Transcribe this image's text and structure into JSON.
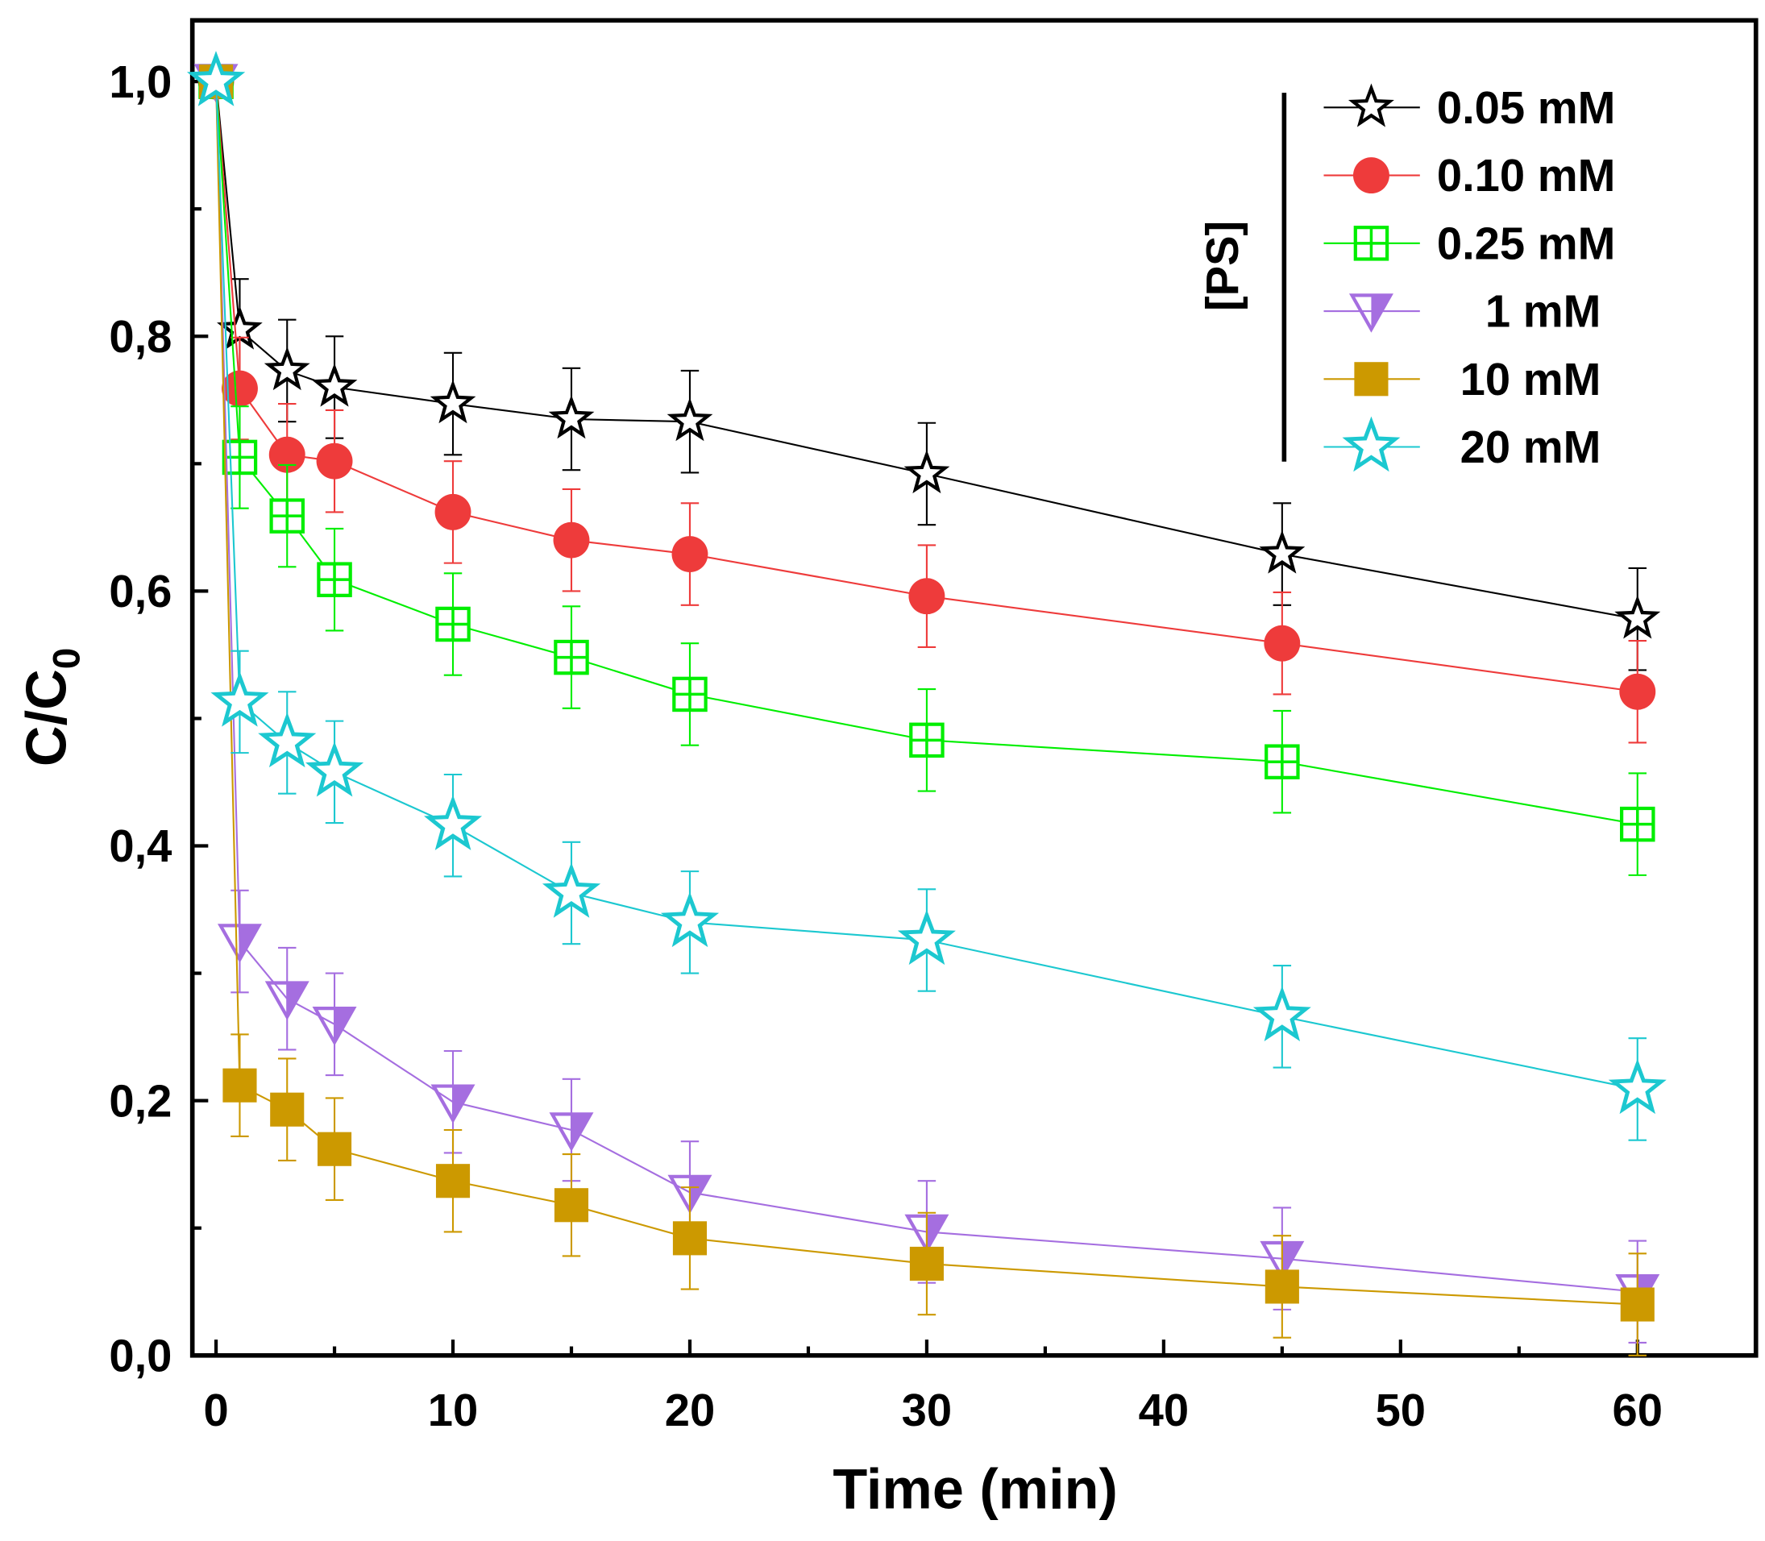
{
  "chart_data": {
    "type": "line",
    "title": "",
    "xlabel": "Time (min)",
    "ylabel": "C/C",
    "ylabel_subscript": "0",
    "xlim": [
      -1,
      65
    ],
    "ylim": [
      0,
      1.048
    ],
    "xticks": [
      0,
      10,
      20,
      30,
      40,
      50,
      60
    ],
    "xtick_labels": [
      "0",
      "10",
      "20",
      "30",
      "40",
      "50",
      "60"
    ],
    "yticks": [
      0,
      0.2,
      0.4,
      0.6,
      0.8,
      1.0
    ],
    "ytick_labels": [
      "0,0",
      "0,2",
      "0,4",
      "0,6",
      "0,8",
      "1,0"
    ],
    "grid": false,
    "legend_title": "[PS]",
    "legend_position": "top-right",
    "x": [
      0,
      1,
      3,
      5,
      10,
      15,
      20,
      30,
      45,
      60
    ],
    "error": 0.04,
    "series": [
      {
        "name": "0.05 mM",
        "color": "#000000",
        "marker": "star-open",
        "values": [
          1.0,
          0.805,
          0.773,
          0.76,
          0.747,
          0.735,
          0.733,
          0.692,
          0.629,
          0.578
        ]
      },
      {
        "name": "0.10 mM",
        "color": "#EE3B3B",
        "marker": "circle-filled",
        "values": [
          1.0,
          0.759,
          0.707,
          0.702,
          0.662,
          0.64,
          0.629,
          0.596,
          0.559,
          0.521
        ]
      },
      {
        "name": "0.25 mM",
        "color": "#00EE00",
        "marker": "square-cross-open",
        "values": [
          1.0,
          0.705,
          0.659,
          0.609,
          0.574,
          0.548,
          0.519,
          0.483,
          0.466,
          0.417
        ]
      },
      {
        "name": "1 mM",
        "color": "#A56EE0",
        "marker": "triangle-down-half",
        "values": [
          1.0,
          0.325,
          0.28,
          0.26,
          0.199,
          0.177,
          0.128,
          0.097,
          0.076,
          0.05
        ]
      },
      {
        "name": "10 mM",
        "color": "#CC9900",
        "marker": "square-filled",
        "values": [
          1.0,
          0.212,
          0.193,
          0.162,
          0.137,
          0.118,
          0.092,
          0.072,
          0.054,
          0.04
        ]
      },
      {
        "name": "20 mM",
        "color": "#1CC8D0",
        "marker": "star-open-large",
        "values": [
          1.0,
          0.513,
          0.481,
          0.458,
          0.416,
          0.363,
          0.34,
          0.326,
          0.266,
          0.209
        ]
      }
    ]
  }
}
